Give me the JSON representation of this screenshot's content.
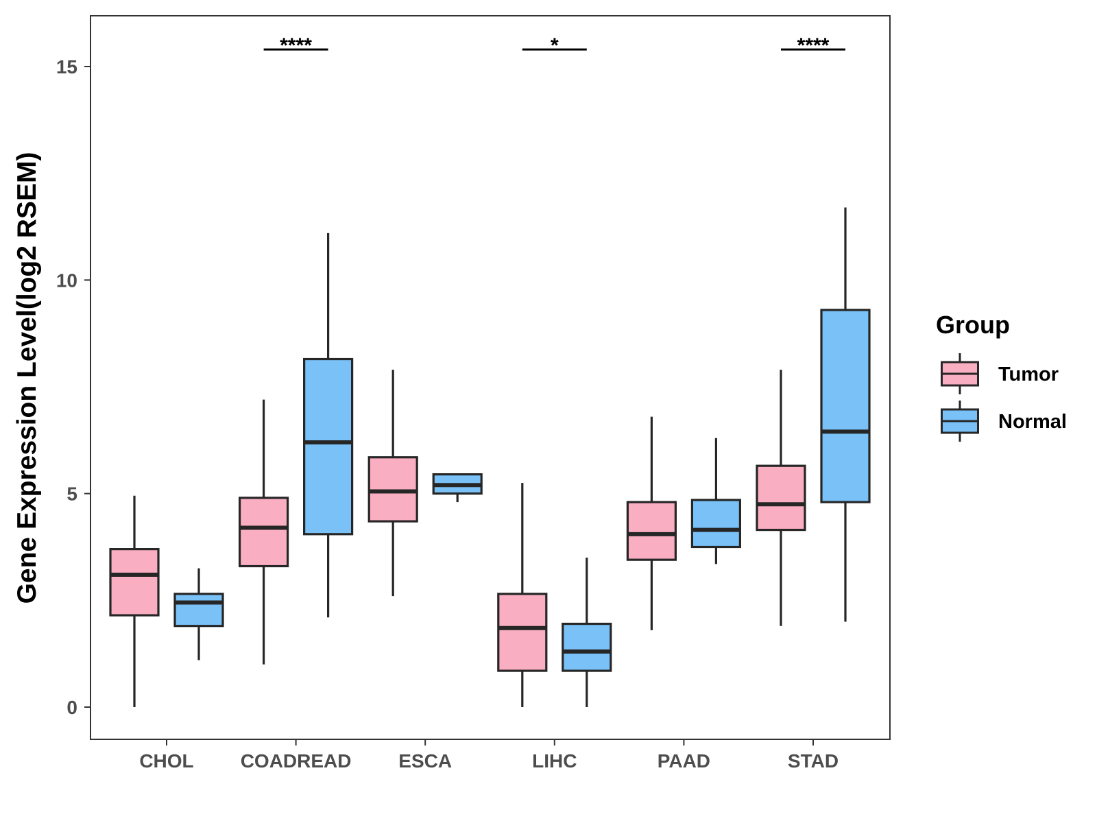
{
  "chart_data": {
    "type": "boxplot",
    "title": "",
    "xlabel": "",
    "ylabel": "Gene Expression Level(log2 RSEM)",
    "ylim": [
      -0.75,
      16.2
    ],
    "yticks": [
      0,
      5,
      10,
      15
    ],
    "ytick_labels": [
      "0",
      "5",
      "10",
      "15"
    ],
    "grid": false,
    "categories": [
      "CHOL",
      "COADREAD",
      "ESCA",
      "LIHC",
      "PAAD",
      "STAD"
    ],
    "legend": {
      "title": "Group",
      "position": "right",
      "entries": [
        "Tumor",
        "Normal"
      ]
    },
    "series": [
      {
        "name": "Tumor",
        "color": "#F9AEC1",
        "boxes": [
          {
            "whisker_low": 0.0,
            "q1": 2.15,
            "median": 3.1,
            "q3": 3.7,
            "whisker_high": 4.95
          },
          {
            "whisker_low": 1.0,
            "q1": 3.3,
            "median": 4.2,
            "q3": 4.9,
            "whisker_high": 7.2
          },
          {
            "whisker_low": 2.6,
            "q1": 4.35,
            "median": 5.05,
            "q3": 5.85,
            "whisker_high": 7.9
          },
          {
            "whisker_low": 0.0,
            "q1": 0.85,
            "median": 1.85,
            "q3": 2.65,
            "whisker_high": 5.25
          },
          {
            "whisker_low": 1.8,
            "q1": 3.45,
            "median": 4.05,
            "q3": 4.8,
            "whisker_high": 6.8
          },
          {
            "whisker_low": 1.9,
            "q1": 4.15,
            "median": 4.75,
            "q3": 5.65,
            "whisker_high": 7.9
          }
        ]
      },
      {
        "name": "Normal",
        "color": "#79C1F7",
        "boxes": [
          {
            "whisker_low": 1.1,
            "q1": 1.9,
            "median": 2.45,
            "q3": 2.65,
            "whisker_high": 3.25
          },
          {
            "whisker_low": 2.1,
            "q1": 4.05,
            "median": 6.2,
            "q3": 8.15,
            "whisker_high": 11.1
          },
          {
            "whisker_low": 4.8,
            "q1": 5.0,
            "median": 5.2,
            "q3": 5.45,
            "whisker_high": 5.45
          },
          {
            "whisker_low": 0.0,
            "q1": 0.85,
            "median": 1.3,
            "q3": 1.95,
            "whisker_high": 3.5
          },
          {
            "whisker_low": 3.35,
            "q1": 3.75,
            "median": 4.15,
            "q3": 4.85,
            "whisker_high": 6.3
          },
          {
            "whisker_low": 2.0,
            "q1": 4.8,
            "median": 6.45,
            "q3": 9.3,
            "whisker_high": 11.7
          }
        ]
      }
    ],
    "significance": [
      {
        "category": "COADREAD",
        "label": "****",
        "y": 15.4
      },
      {
        "category": "LIHC",
        "label": "*",
        "y": 15.4
      },
      {
        "category": "STAD",
        "label": "****",
        "y": 15.4
      }
    ]
  }
}
